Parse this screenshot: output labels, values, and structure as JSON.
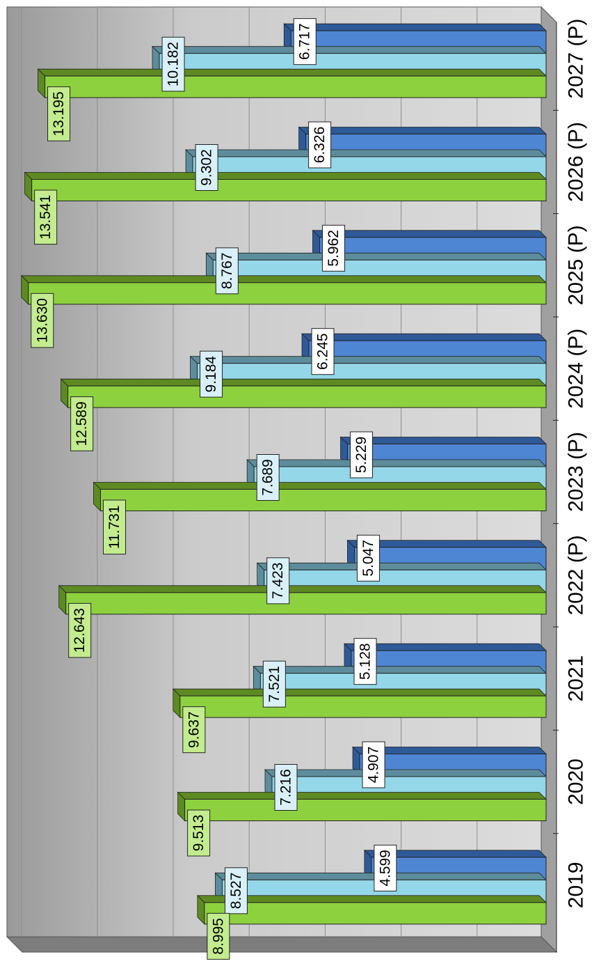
{
  "chart_data": {
    "type": "bar",
    "orientation": "horizontal-3d-rotated",
    "categories": [
      "2019",
      "2020",
      "2021",
      "2022 (P)",
      "2023 (P)",
      "2024 (P)",
      "2025 (P)",
      "2026 (P)",
      "2027 (P)"
    ],
    "series": [
      {
        "values": [
          8.995,
          9.513,
          9.637,
          12.643,
          11.731,
          12.589,
          13.63,
          13.541,
          13.195
        ]
      },
      {
        "values": [
          8.527,
          7.216,
          7.521,
          7.423,
          7.689,
          9.184,
          8.767,
          9.302,
          10.182
        ]
      },
      {
        "values": [
          4.599,
          4.907,
          5.128,
          5.047,
          5.229,
          6.245,
          5.962,
          6.326,
          6.717
        ]
      }
    ],
    "value_labels": {
      "s0": [
        "8.995",
        "9.513",
        "9.637",
        "12.643",
        "11.731",
        "12.589",
        "13.630",
        "13.541",
        "13.195"
      ],
      "s1": [
        "8.527",
        "7.216",
        "7.521",
        "7.423",
        "7.689",
        "9.184",
        "8.767",
        "9.302",
        "10.182"
      ],
      "s2": [
        "4.599",
        "4.907",
        "5.128",
        "5.047",
        "5.229",
        "6.245",
        "5.962",
        "6.326",
        "6.717"
      ]
    },
    "xlim": [
      0,
      14
    ],
    "grid": true,
    "colors": {
      "series": [
        "#8dd13f",
        "#93d7e8",
        "#4f86d4"
      ],
      "series_top": [
        "#5e8a22",
        "#5d8d9c",
        "#2f5a98"
      ],
      "label_bg": [
        "#c3ec8f",
        "#d9f0f8",
        "#ffffff"
      ],
      "plot_bg": "#c8c8c8",
      "floor": "#8c8c8c",
      "grid": "#8e8e8e"
    },
    "title": "",
    "xlabel": "",
    "ylabel": ""
  }
}
